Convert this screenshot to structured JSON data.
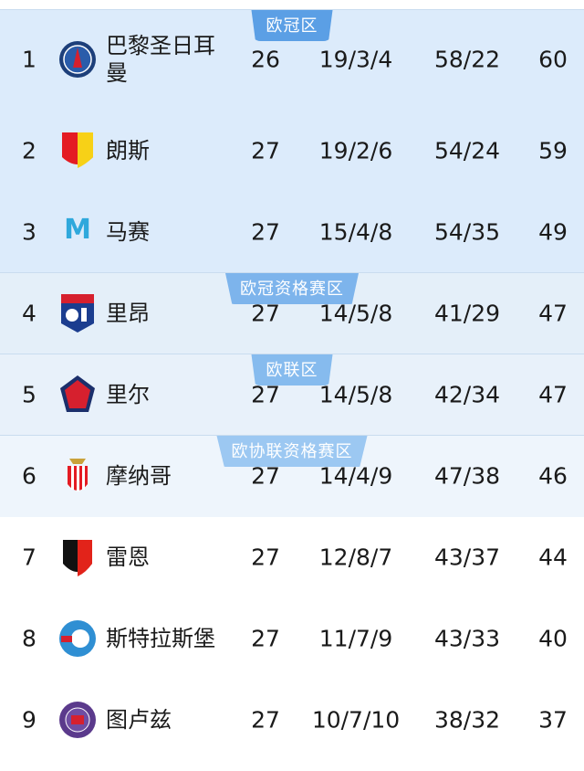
{
  "zones": [
    {
      "label": "欧冠区",
      "bg": "#dcebfb",
      "badge": "#5b9fe5"
    },
    {
      "label": "欧冠资格赛区",
      "bg": "#e4eff9",
      "badge": "#7db4ec"
    },
    {
      "label": "欧联区",
      "bg": "#e8f1fa",
      "badge": "#86bbee"
    },
    {
      "label": "欧协联资格赛区",
      "bg": "#eef5fc",
      "badge": "#9cc8f2"
    }
  ],
  "rows": [
    {
      "rank": "1",
      "team": "巴黎圣日耳曼",
      "played": "26",
      "wdl": "19/3/4",
      "goals": "58/22",
      "points": "60",
      "logo": "psg-logo"
    },
    {
      "rank": "2",
      "team": "朗斯",
      "played": "27",
      "wdl": "19/2/6",
      "goals": "54/24",
      "points": "59",
      "logo": "lens-logo"
    },
    {
      "rank": "3",
      "team": "马赛",
      "played": "27",
      "wdl": "15/4/8",
      "goals": "54/35",
      "points": "49",
      "logo": "marseille-logo"
    },
    {
      "rank": "4",
      "team": "里昂",
      "played": "27",
      "wdl": "14/5/8",
      "goals": "41/29",
      "points": "47",
      "logo": "lyon-logo"
    },
    {
      "rank": "5",
      "team": "里尔",
      "played": "27",
      "wdl": "14/5/8",
      "goals": "42/34",
      "points": "47",
      "logo": "lille-logo"
    },
    {
      "rank": "6",
      "team": "摩纳哥",
      "played": "27",
      "wdl": "14/4/9",
      "goals": "47/38",
      "points": "46",
      "logo": "monaco-logo"
    },
    {
      "rank": "7",
      "team": "雷恩",
      "played": "27",
      "wdl": "12/8/7",
      "goals": "43/37",
      "points": "44",
      "logo": "rennes-logo"
    },
    {
      "rank": "8",
      "team": "斯特拉斯堡",
      "played": "27",
      "wdl": "11/7/9",
      "goals": "43/33",
      "points": "40",
      "logo": "strasbourg-logo"
    },
    {
      "rank": "9",
      "team": "图卢兹",
      "played": "27",
      "wdl": "10/7/10",
      "goals": "38/32",
      "points": "37",
      "logo": "toulouse-logo"
    }
  ]
}
